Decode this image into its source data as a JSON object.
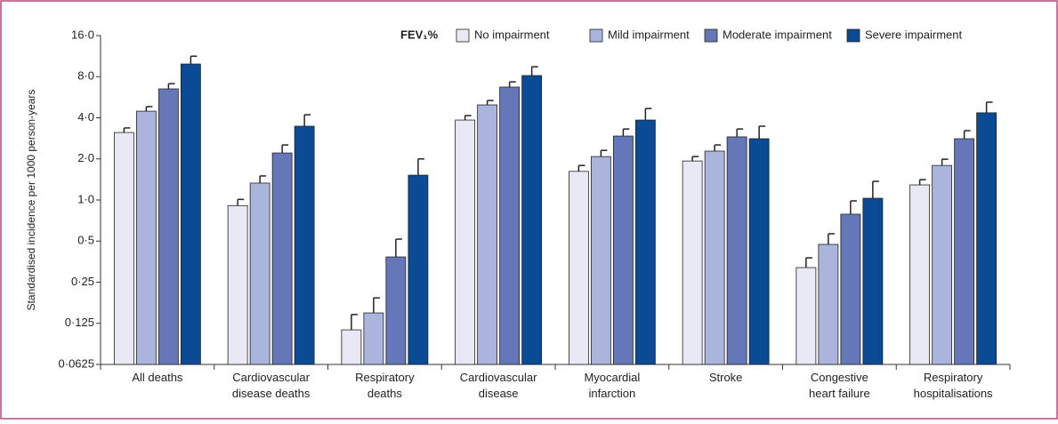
{
  "chart_data": {
    "type": "bar",
    "ylabel": "Standardised incidence per 1000 person-years",
    "legend_title": "FEV₁%",
    "legend": "upper right",
    "log_scale": true,
    "categories": [
      "All deaths",
      "Cardiovascular\ndisease deaths",
      "Respiratory\ndeaths",
      "Cardiovascular\ndisease",
      "Myocardial\ninfarction",
      "Stroke",
      "Congestive\nheart failure",
      "Respiratory\nhospitalisations"
    ],
    "series": [
      {
        "name": "No impairment",
        "color": "#e9e9f5",
        "values": [
          3.12,
          0.91,
          0.112,
          3.85,
          1.62,
          1.93,
          0.32,
          1.29
        ],
        "errors": [
          0.25,
          0.1,
          0.033,
          0.3,
          0.17,
          0.15,
          0.057,
          0.12
        ]
      },
      {
        "name": "Mild impairment",
        "color": "#aab4dc",
        "values": [
          4.47,
          1.33,
          0.149,
          4.97,
          2.08,
          2.28,
          0.473,
          1.79
        ],
        "errors": [
          0.36,
          0.17,
          0.043,
          0.38,
          0.23,
          0.25,
          0.093,
          0.2
        ]
      },
      {
        "name": "Moderate impairment",
        "color": "#6577b8",
        "values": [
          6.51,
          2.21,
          0.383,
          6.71,
          2.94,
          2.9,
          0.787,
          2.81
        ],
        "errors": [
          0.6,
          0.32,
          0.134,
          0.62,
          0.37,
          0.41,
          0.198,
          0.41
        ]
      },
      {
        "name": "Severe impairment",
        "color": "#0b4a94",
        "values": [
          9.9,
          3.47,
          1.52,
          8.15,
          3.85,
          2.81,
          1.03,
          4.35
        ],
        "errors": [
          1.4,
          0.74,
          0.48,
          1.31,
          0.83,
          0.66,
          0.34,
          0.85
        ]
      }
    ],
    "ylim": [
      0.0625,
      16
    ],
    "yticks": [
      {
        "value": 0.0625,
        "label": "0·0625"
      },
      {
        "value": 0.125,
        "label": "0·125"
      },
      {
        "value": 0.25,
        "label": "0·25"
      },
      {
        "value": 0.5,
        "label": "0·5"
      },
      {
        "value": 1,
        "label": "1·0"
      },
      {
        "value": 2,
        "label": "2·0"
      },
      {
        "value": 4,
        "label": "4·0"
      },
      {
        "value": 8,
        "label": "8·0"
      },
      {
        "value": 16,
        "label": "16·0"
      }
    ]
  }
}
